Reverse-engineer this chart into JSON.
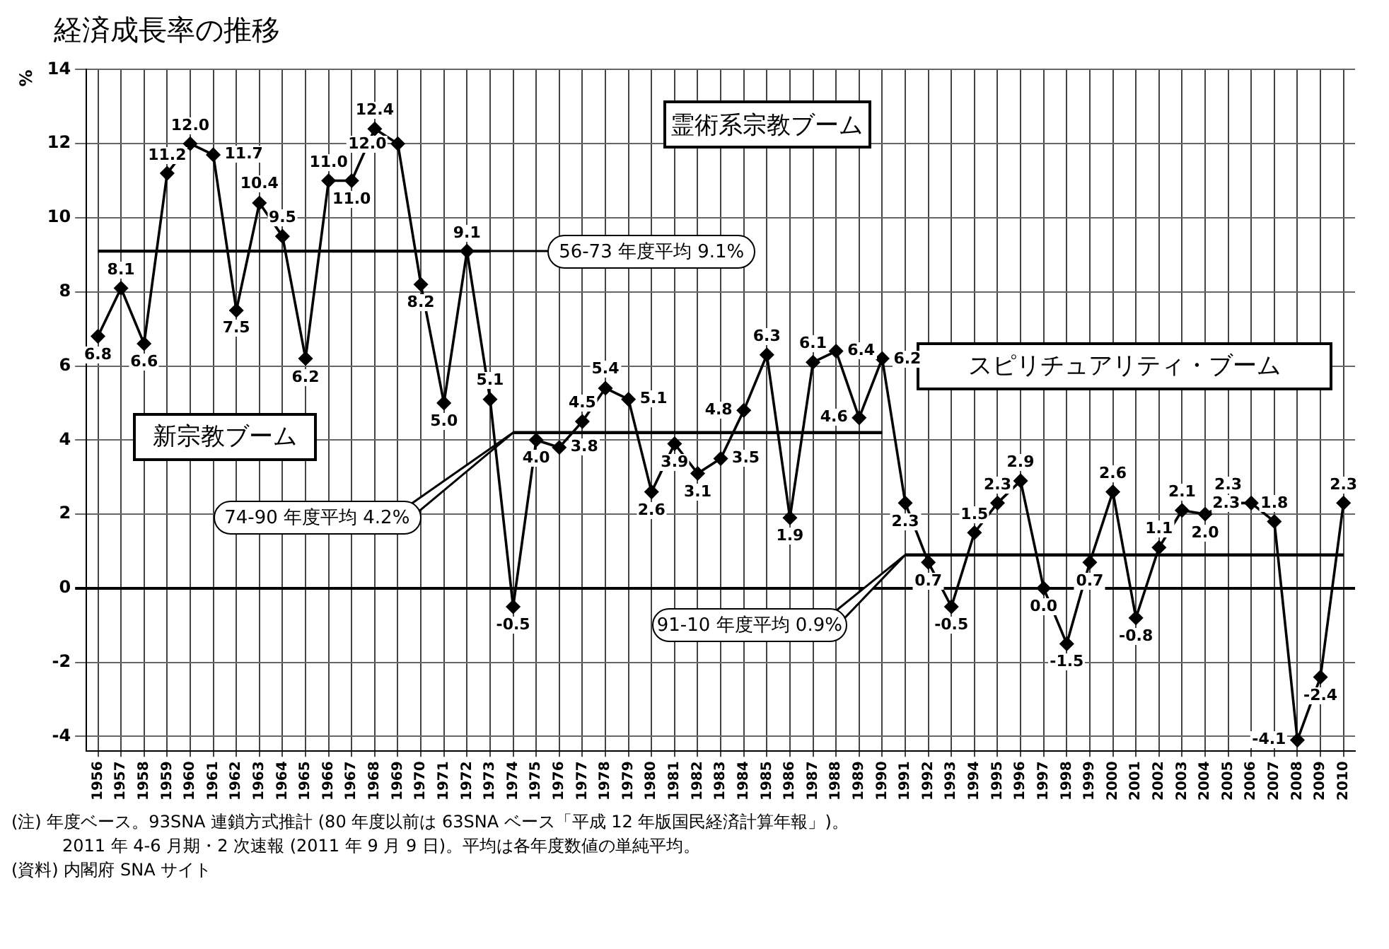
{
  "chart_data": {
    "type": "line",
    "title": "経済成長率の推移",
    "ylabel": "%",
    "categories": [
      "1956",
      "1957",
      "1958",
      "1959",
      "1960",
      "1961",
      "1962",
      "1963",
      "1964",
      "1965",
      "1966",
      "1967",
      "1968",
      "1969",
      "1970",
      "1971",
      "1972",
      "1973",
      "1974",
      "1975",
      "1976",
      "1977",
      "1978",
      "1979",
      "1980",
      "1981",
      "1982",
      "1983",
      "1984",
      "1985",
      "1986",
      "1987",
      "1988",
      "1989",
      "1990",
      "1991",
      "1992",
      "1993",
      "1994",
      "1995",
      "1996",
      "1997",
      "1998",
      "1999",
      "2000",
      "2001",
      "2002",
      "2003",
      "2004",
      "2005",
      "2006",
      "2007",
      "2008",
      "2009",
      "2010"
    ],
    "series": [
      {
        "color": "#000000",
        "marker": "diamond",
        "values": [
          6.8,
          8.1,
          6.6,
          11.2,
          12.0,
          11.7,
          7.5,
          10.4,
          9.5,
          6.2,
          11.0,
          11.0,
          12.4,
          12.0,
          8.2,
          5.0,
          9.1,
          5.1,
          -0.5,
          4.0,
          3.8,
          4.5,
          5.4,
          5.1,
          2.6,
          3.9,
          3.1,
          3.5,
          4.8,
          6.3,
          1.9,
          6.1,
          6.4,
          4.6,
          6.2,
          2.3,
          0.7,
          -0.5,
          1.5,
          2.3,
          2.9,
          0.0,
          -1.5,
          0.7,
          2.6,
          -0.8,
          1.1,
          2.1,
          2.0,
          2.3,
          2.3,
          1.8,
          -4.1,
          -2.4,
          2.3
        ],
        "value_labels": [
          "6.8",
          "8.1",
          "6.6",
          "11.2",
          "12.0",
          "11.7",
          "7.5",
          "10.4",
          "9.5",
          "6.2",
          "11.0",
          "11.0",
          "12.4",
          "12.0",
          "8.2",
          "5.0",
          "9.1",
          "5.1",
          "-0.5",
          "4.0",
          "3.8",
          "4.5",
          "5.4",
          "5.1",
          "2.6",
          "3.9",
          "3.1",
          "3.5",
          "4.8",
          "6.3",
          "1.9",
          "6.1",
          "6.4",
          "4.6",
          "6.2",
          "2.3",
          "0.7",
          "-0.5",
          "1.5",
          "2.3",
          "2.9",
          "0.0",
          "-1.5",
          "0.7",
          "2.6",
          "-0.8",
          "1.1",
          "2.1",
          "2.0",
          "2.3",
          "2.3",
          "1.8",
          "-4.1",
          "-2.4",
          "2.3"
        ]
      },
      {
        "color": "#000000",
        "marker": "none",
        "values": [
          9.1,
          9.1,
          9.1,
          9.1,
          9.1,
          9.1,
          9.1,
          9.1,
          9.1,
          9.1,
          9.1,
          9.1,
          9.1,
          9.1,
          9.1,
          9.1,
          9.1,
          9.1,
          null,
          null,
          null,
          null,
          null,
          null,
          null,
          null,
          null,
          null,
          null,
          null,
          null,
          null,
          null,
          null,
          null,
          null,
          null,
          null,
          null,
          null,
          null,
          null,
          null,
          null,
          null,
          null,
          null,
          null,
          null,
          null,
          null,
          null,
          null,
          null,
          null
        ]
      },
      {
        "color": "#000000",
        "marker": "none",
        "values": [
          null,
          null,
          null,
          null,
          null,
          null,
          null,
          null,
          null,
          null,
          null,
          null,
          null,
          null,
          null,
          null,
          null,
          null,
          4.2,
          4.2,
          4.2,
          4.2,
          4.2,
          4.2,
          4.2,
          4.2,
          4.2,
          4.2,
          4.2,
          4.2,
          4.2,
          4.2,
          4.2,
          4.2,
          4.2,
          null,
          null,
          null,
          null,
          null,
          null,
          null,
          null,
          null,
          null,
          null,
          null,
          null,
          null,
          null,
          null,
          null,
          null,
          null,
          null
        ]
      },
      {
        "color": "#000000",
        "marker": "none",
        "values": [
          null,
          null,
          null,
          null,
          null,
          null,
          null,
          null,
          null,
          null,
          null,
          null,
          null,
          null,
          null,
          null,
          null,
          null,
          null,
          null,
          null,
          null,
          null,
          null,
          null,
          null,
          null,
          null,
          null,
          null,
          null,
          null,
          null,
          null,
          null,
          0.9,
          0.9,
          0.9,
          0.9,
          0.9,
          0.9,
          0.9,
          0.9,
          0.9,
          0.9,
          0.9,
          0.9,
          0.9,
          0.9,
          0.9,
          0.9,
          0.9,
          0.9,
          0.9,
          0.9
        ]
      }
    ],
    "ylim": [
      -4.4,
      14
    ],
    "yticks": [
      -4,
      -2,
      0,
      2,
      4,
      6,
      8,
      10,
      12,
      14
    ],
    "grid": true,
    "legend": false,
    "annotations": [
      "霊術系宗教ブーム",
      "新宗教ブーム",
      "スピリチュアリティ・ブーム",
      "56-73 年度平均 9.1%",
      "74-90 年度平均 4.2%",
      "91-10 年度平均 0.9%",
      "(注) 年度ベース。93SNA 連鎖方式推計 (80 年度以前は 63SNA ベース「平成 12 年版国民経済計算年報」)。",
      "2011 年 4-6 月期・2 次速報 (2011 年 9 月 9 日)。平均は各年度数値の単純平均。",
      "(資料) 内閣府 SNA サイト"
    ]
  }
}
